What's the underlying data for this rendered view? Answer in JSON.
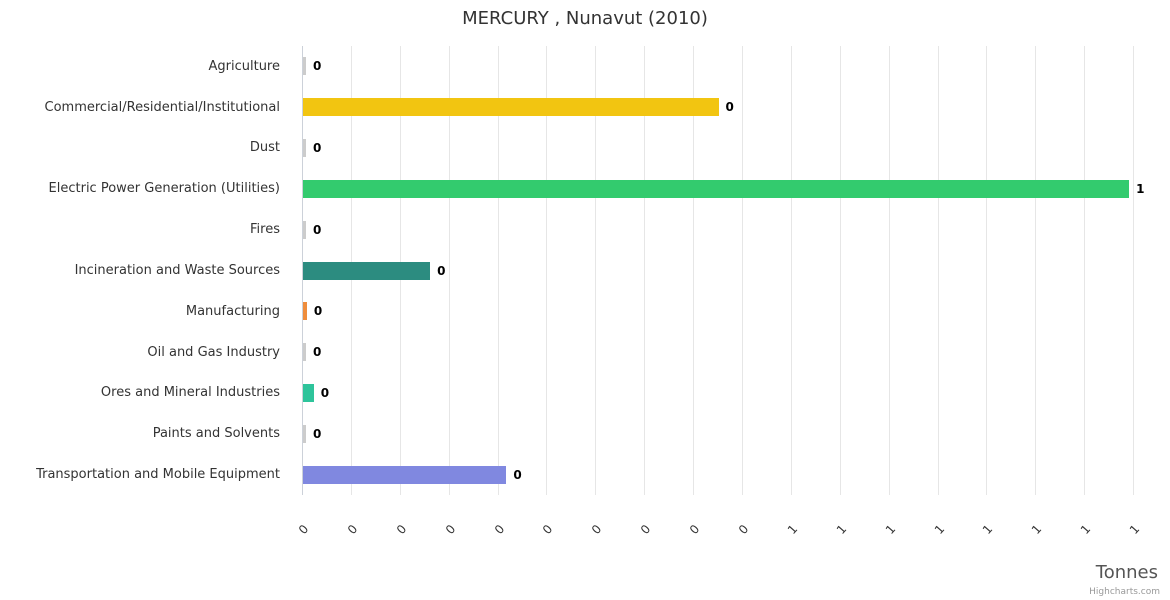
{
  "chart": {
    "title": "MERCURY , Nunavut (2010)",
    "xaxis_title": "Tonnes",
    "credits": "Highcharts.com"
  },
  "chart_data": {
    "type": "bar",
    "orientation": "horizontal",
    "title": "MERCURY , Nunavut (2010)",
    "xlabel": "Tonnes",
    "ylabel": "",
    "xlim": [
      0,
      0.85
    ],
    "grid": true,
    "legend": false,
    "categories": [
      "Agriculture",
      "Commercial/Residential/Institutional",
      "Dust",
      "Electric Power Generation (Utilities)",
      "Fires",
      "Incineration and Waste Sources",
      "Manufacturing",
      "Oil and Gas Industry",
      "Ores and Mineral Industries",
      "Paints and Solvents",
      "Transportation and Mobile Equipment"
    ],
    "values": [
      0.003,
      0.425,
      0.003,
      0.845,
      0.003,
      0.13,
      0.004,
      0.003,
      0.011,
      0.003,
      0.208
    ],
    "display_labels": [
      "0",
      "0",
      "0",
      "1",
      "0",
      "0",
      "0",
      "0",
      "0",
      "0",
      "0"
    ],
    "bar_colors": [
      "#cccccc",
      "#f2c511",
      "#cccccc",
      "#33cb6e",
      "#cccccc",
      "#2c8c80",
      "#ef8d3c",
      "#cccccc",
      "#2ec49b",
      "#cccccc",
      "#8088e0"
    ],
    "axis_tick_labels": [
      "0",
      "0",
      "0",
      "0",
      "0",
      "0",
      "0",
      "0",
      "0",
      "0",
      "1",
      "1",
      "1",
      "1",
      "1",
      "1",
      "1",
      "1"
    ]
  }
}
